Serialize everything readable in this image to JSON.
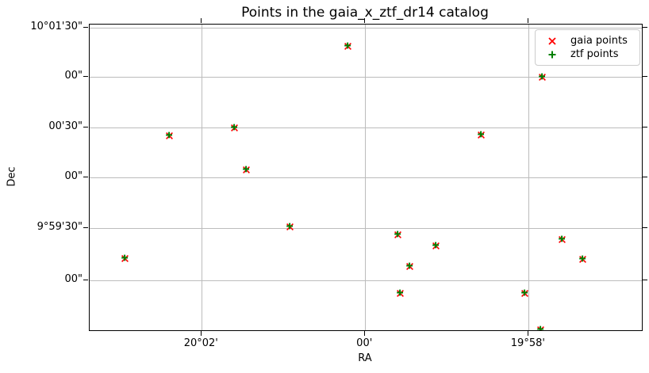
{
  "chart_data": {
    "type": "scatter",
    "title": "Points in the gaia_x_ztf_dr14 catalog",
    "xlabel": "RA",
    "ylabel": "Dec",
    "grid": true,
    "legend_position": "upper right",
    "x_axis_note": "RA increases to the left (sky convention); ticks read 20°02', 00', 19°58' left to right",
    "x_ticks": [
      {
        "label": "20°02'",
        "fx": 0.203
      },
      {
        "label": "00'",
        "fx": 0.4989
      },
      {
        "label": "19°58'",
        "fx": 0.7951
      }
    ],
    "y_ticks": [
      {
        "label": "10°01'30\"",
        "fy": 0.0096
      },
      {
        "label": "00\"",
        "fy": 0.171
      },
      {
        "label": "00'30\"",
        "fy": 0.3368
      },
      {
        "label": "00\"",
        "fy": 0.5005
      },
      {
        "label": "9°59'30\"",
        "fy": 0.6653
      },
      {
        "label": "00\"",
        "fy": 0.8363
      }
    ],
    "series": [
      {
        "name": "gaia points",
        "marker": "x",
        "color": "#ff0000"
      },
      {
        "name": "ztf points",
        "marker": "+",
        "color": "#008000"
      }
    ],
    "points_note": "Each sky location holds one gaia (red x) and one ztf (green +) marker, nearly coincident; fx/fy are fractional positions inside the axes (fy measured downward).",
    "points": [
      {
        "ra": "20°02'56\"",
        "dec": "9°59'13\"",
        "fx": 0.0642,
        "fy": 0.766
      },
      {
        "ra": "20°02'24\"",
        "dec": "10°00'25\"",
        "fx": 0.1447,
        "fy": 0.3645
      },
      {
        "ra": "20°01'36\"",
        "dec": "10°00'30\"",
        "fx": 0.2625,
        "fy": 0.3376
      },
      {
        "ra": "20°01'27\"",
        "dec": "10°00'05\"",
        "fx": 0.2835,
        "fy": 0.4759
      },
      {
        "ra": "20°00'56\"",
        "dec": "9°59'32\"",
        "fx": 0.3621,
        "fy": 0.6614
      },
      {
        "ra": "20°00'13\"",
        "dec": "10°01'19\"",
        "fx": 0.467,
        "fy": 0.0718
      },
      {
        "ra": "19°59'36\"",
        "dec": "9°59'27\"",
        "fx": 0.5585,
        "fy": 0.689
      },
      {
        "ra": "19°59'34\"",
        "dec": "9°58'52\"",
        "fx": 0.5622,
        "fy": 0.879
      },
      {
        "ra": "19°59'28\"",
        "dec": "9°59'08\"",
        "fx": 0.5795,
        "fy": 0.7927
      },
      {
        "ra": "19°59'08\"",
        "dec": "9°59'20\"",
        "fx": 0.6274,
        "fy": 0.7236
      },
      {
        "ra": "19°58'35\"",
        "dec": "10°00'26\"",
        "fx": 0.7088,
        "fy": 0.3609
      },
      {
        "ra": "19°58'03\"",
        "dec": "9°58'52\"",
        "fx": 0.7884,
        "fy": 0.88
      },
      {
        "ra": "19°57'51\"",
        "dec": "9°58'30\"",
        "fx": 0.8175,
        "fy": 0.9987
      },
      {
        "ra": "19°57'50\"",
        "dec": "10°01'01\"",
        "fx": 0.8194,
        "fy": 0.171
      },
      {
        "ra": "19°57'36\"",
        "dec": "9°59'24\"",
        "fx": 0.8553,
        "fy": 0.7038
      },
      {
        "ra": "19°57'20\"",
        "dec": "9°59'12\"",
        "fx": 0.8927,
        "fy": 0.7686
      }
    ]
  },
  "colors": {
    "background": "#ffffff",
    "grid": "#bcbcbc",
    "spine": "#000000",
    "gaia_marker": "#ff0000",
    "ztf_marker": "#008000",
    "legend_border": "#cccccc",
    "text": "#000000"
  }
}
